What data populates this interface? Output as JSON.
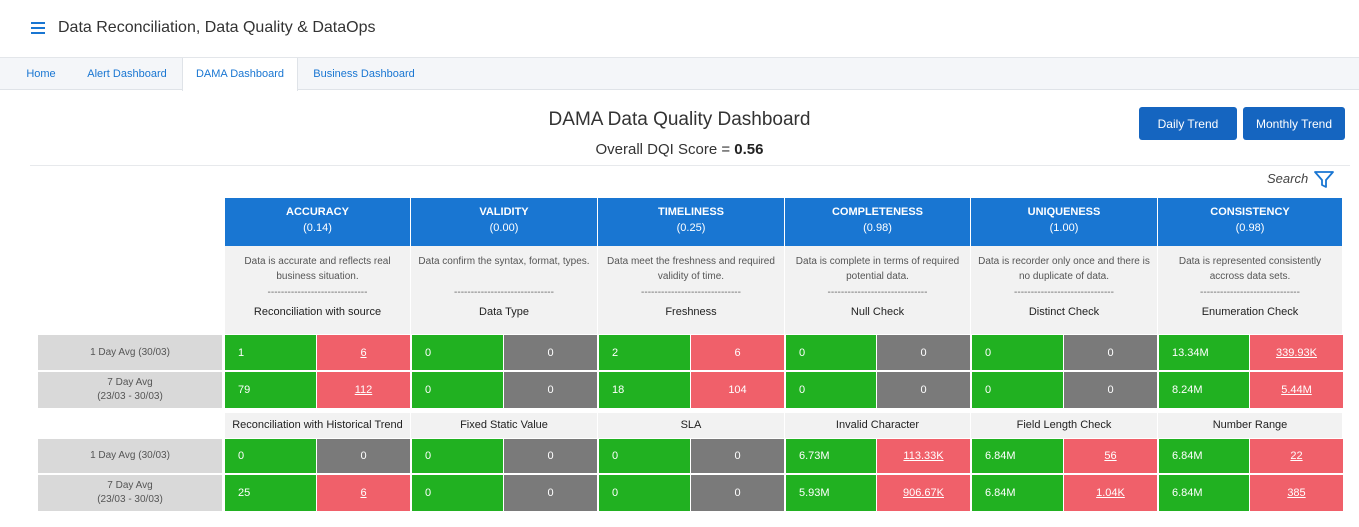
{
  "app": {
    "title": "Data Reconciliation, Data Quality & DataOps"
  },
  "tabs": [
    "Home",
    "Alert Dashboard",
    "DAMA Dashboard",
    "Business Dashboard"
  ],
  "panel": {
    "title": "DAMA Data Quality Dashboard",
    "dqi_label": "Overall DQI Score = ",
    "dqi_value": "0.56"
  },
  "buttons": {
    "daily": "Daily Trend",
    "monthly": "Monthly Trend"
  },
  "search": {
    "label": "Search"
  },
  "dividers": {
    "dash": "------------------------------"
  },
  "dimensions": [
    {
      "name": "ACCURACY",
      "score": "(0.14)",
      "desc": "Data is accurate and reflects real business situation.",
      "check1": "Reconciliation with source",
      "check2": "Reconciliation with Historical Trend"
    },
    {
      "name": "VALIDITY",
      "score": "(0.00)",
      "desc": "Data confirm the syntax, format, types.",
      "check1": "Data Type",
      "check2": "Fixed Static Value"
    },
    {
      "name": "TIMELINESS",
      "score": "(0.25)",
      "desc": "Data meet the freshness and required validity of time.",
      "check1": "Freshness",
      "check2": "SLA"
    },
    {
      "name": "COMPLETENESS",
      "score": "(0.98)",
      "desc": "Data is complete in terms of required potential data.",
      "check1": "Null Check",
      "check2": "Invalid Character"
    },
    {
      "name": "UNIQUENESS",
      "score": "(1.00)",
      "desc": "Data is recorder only once and there is no duplicate of data.",
      "check1": "Distinct Check",
      "check2": "Field Length Check"
    },
    {
      "name": "CONSISTENCY",
      "score": "(0.98)",
      "desc": "Data is represented consistently accross data sets.",
      "check1": "Enumeration Check",
      "check2": "Number Range"
    }
  ],
  "rows": {
    "r1": {
      "label": "1 Day Avg (30/03)",
      "cells": [
        [
          "1",
          "6"
        ],
        [
          "0",
          "0"
        ],
        [
          "2",
          "6"
        ],
        [
          "0",
          "0"
        ],
        [
          "0",
          "0"
        ],
        [
          "13.34M",
          "339.93K"
        ]
      ]
    },
    "r2": {
      "label": "7 Day Avg",
      "label2": "(23/03 - 30/03)",
      "cells": [
        [
          "79",
          "112"
        ],
        [
          "0",
          "0"
        ],
        [
          "18",
          "104"
        ],
        [
          "0",
          "0"
        ],
        [
          "0",
          "0"
        ],
        [
          "8.24M",
          "5.44M"
        ]
      ]
    },
    "r3": {
      "label": "1 Day Avg (30/03)",
      "cells": [
        [
          "0",
          "0"
        ],
        [
          "0",
          "0"
        ],
        [
          "0",
          "0"
        ],
        [
          "6.73M",
          "113.33K"
        ],
        [
          "6.84M",
          "56"
        ],
        [
          "6.84M",
          "22"
        ]
      ]
    },
    "r4": {
      "label": "7 Day Avg",
      "label2": "(23/03 - 30/03)",
      "cells": [
        [
          "25",
          "6"
        ],
        [
          "0",
          "0"
        ],
        [
          "0",
          "0"
        ],
        [
          "5.93M",
          "906.67K"
        ],
        [
          "6.84M",
          "1.04K"
        ],
        [
          "6.84M",
          "385"
        ]
      ]
    }
  },
  "colors": {
    "pass": "#21b121",
    "fail": "#f0606a",
    "neutral": "#7a7a7a",
    "header": "#1976d2"
  }
}
